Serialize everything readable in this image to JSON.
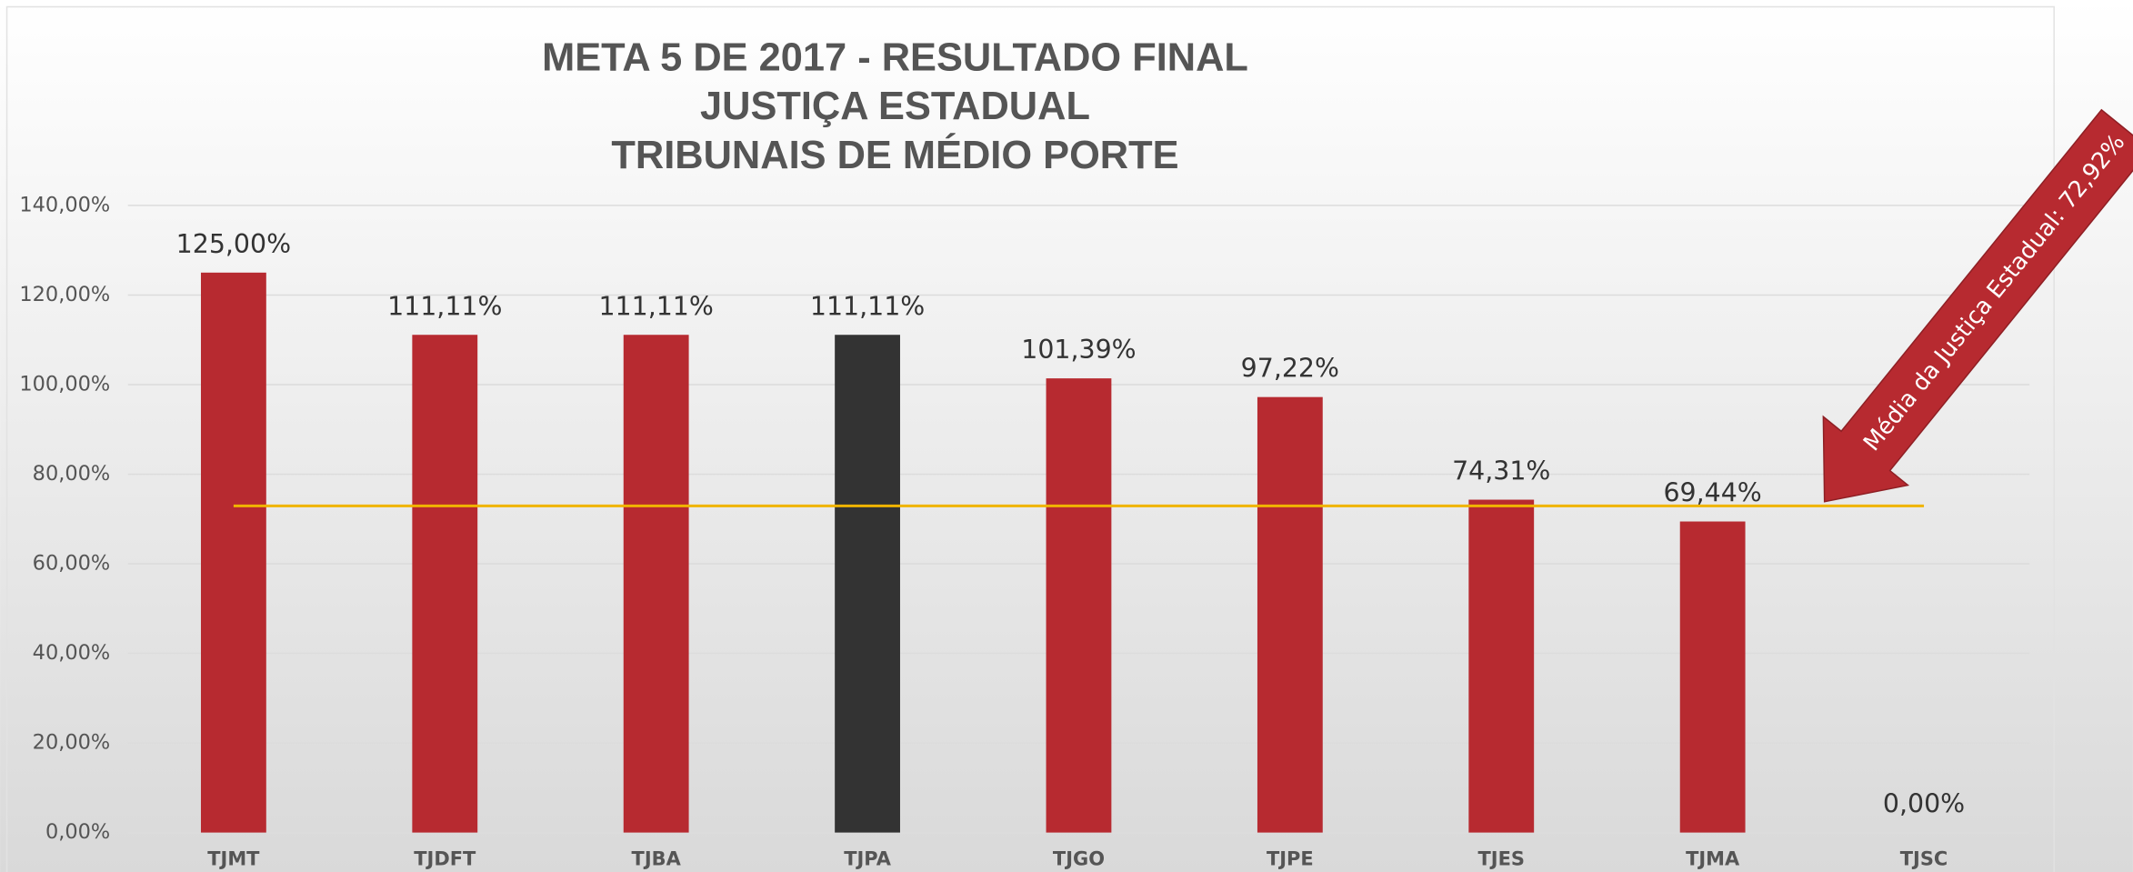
{
  "chart_data": {
    "type": "bar",
    "title": [
      "META 5 DE 2017 - RESULTADO FINAL",
      "JUSTIÇA ESTADUAL",
      "TRIBUNAIS DE MÉDIO PORTE"
    ],
    "categories": [
      "TJMT",
      "TJDFT",
      "TJBA",
      "TJPA",
      "TJGO",
      "TJPE",
      "TJES",
      "TJMA",
      "TJSC"
    ],
    "values": [
      125,
      111.11,
      111.11,
      111.11,
      101.39,
      97.22,
      74.31,
      69.44,
      0
    ],
    "value_labels": [
      "125,00%",
      "111,11%",
      "111,11%",
      "111,11%",
      "101,39%",
      "97,22%",
      "74,31%",
      "69,44%",
      "0,00%"
    ],
    "colors": [
      "#b72a30",
      "#b72a30",
      "#b72a30",
      "#333333",
      "#b72a30",
      "#b72a30",
      "#b72a30",
      "#b72a30",
      "#b72a30"
    ],
    "ylim": [
      0,
      140
    ],
    "yticks": [
      {
        "value": 0,
        "label": "0,00%"
      },
      {
        "value": 20,
        "label": "20,00%"
      },
      {
        "value": 40,
        "label": "40,00%"
      },
      {
        "value": 60,
        "label": "60,00%"
      },
      {
        "value": 80,
        "label": "80,00%"
      },
      {
        "value": 100,
        "label": "100,00%"
      },
      {
        "value": 120,
        "label": "120,00%"
      },
      {
        "value": 140,
        "label": "140,00%"
      }
    ],
    "grid": true,
    "reference_line": {
      "value": 72.92,
      "color": "#f0b400"
    },
    "annotation": {
      "text": "Média da Justiça Estadual: 72,92%",
      "color": "#b72a30"
    }
  }
}
